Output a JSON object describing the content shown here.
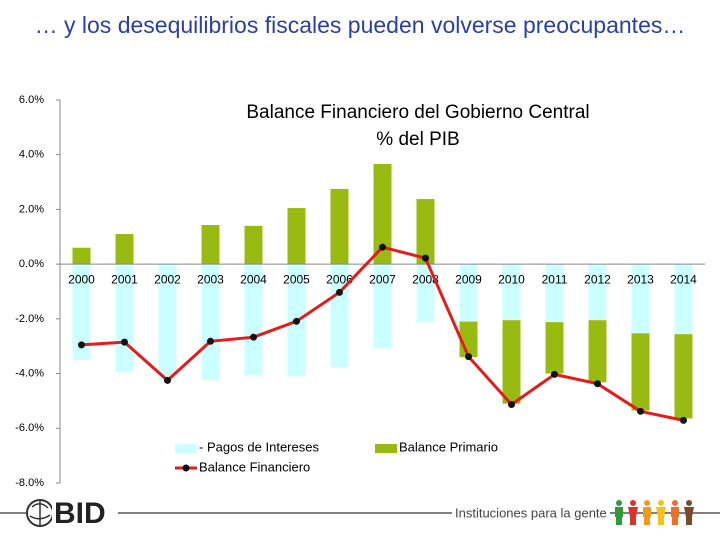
{
  "slide_title": "… y los desequilibrios fiscales pueden volverse preocupantes…",
  "chart_data": {
    "type": "bar",
    "title": "Balance Financiero del Gobierno Central",
    "subtitle": "% del PIB",
    "categories": [
      "2000",
      "2001",
      "2002",
      "2003",
      "2004",
      "2005",
      "2006",
      "2007",
      "2008",
      "2009",
      "2010",
      "2011",
      "2012",
      "2013",
      "2014"
    ],
    "stacked": true,
    "series": [
      {
        "name": "- Pagos de Intereses",
        "type": "bar",
        "color": "#ccffff",
        "values": [
          -3.5,
          -3.95,
          -4.25,
          -4.25,
          -4.07,
          -4.1,
          -3.77,
          -3.08,
          -2.12,
          -2.1,
          -2.05,
          -2.12,
          -2.05,
          -2.53,
          -2.56
        ]
      },
      {
        "name": "Balance Primario",
        "type": "bar",
        "color": "#99bb11",
        "values": [
          0.6,
          1.1,
          0,
          1.43,
          1.4,
          2.05,
          2.75,
          3.66,
          2.38,
          -1.3,
          -3.05,
          -1.88,
          -2.27,
          -2.82,
          -3.08
        ]
      },
      {
        "name": "Balance Financiero",
        "type": "line",
        "color": "#e41b1b",
        "marker_color": "#111111",
        "values": [
          -2.95,
          -2.85,
          -4.25,
          -2.82,
          -2.67,
          -2.09,
          -1.03,
          0.62,
          0.22,
          -3.38,
          -5.13,
          -4.03,
          -4.37,
          -5.38,
          -5.71
        ]
      }
    ],
    "ylim": [
      -8,
      6
    ],
    "yticks": [
      {
        "value": 6,
        "label": "6.0%"
      },
      {
        "value": 4,
        "label": "4.0%"
      },
      {
        "value": 2,
        "label": "2.0%"
      },
      {
        "value": 0,
        "label": "0.0%"
      },
      {
        "value": -2,
        "label": "-2.0%"
      },
      {
        "value": -4,
        "label": "-4.0%"
      },
      {
        "value": -6,
        "label": "-6.0%"
      },
      {
        "value": -8,
        "label": "-8.0%"
      }
    ],
    "grid": false,
    "legend": "bottom"
  },
  "footer": {
    "logo": "BID",
    "tagline": "Instituciones para la gente"
  }
}
